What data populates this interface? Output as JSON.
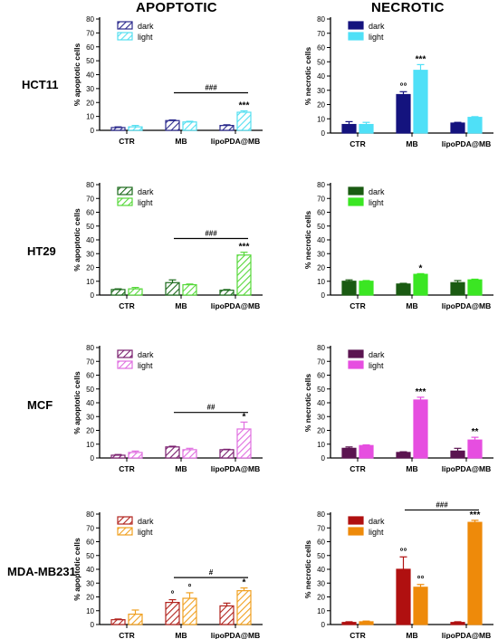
{
  "column_titles": {
    "apoptotic": "APOPTOTIC",
    "necrotic": "NECROTIC"
  },
  "row_labels": [
    "HCT11",
    "HT29",
    "MCF",
    "MDA-MB231"
  ],
  "chart_data": [
    {
      "id": "hct-apo",
      "type": "bar",
      "categories": [
        "CTR",
        "MB",
        "lipoPDA@MB"
      ],
      "ylabel": "% apoptotic cells",
      "ylim": [
        0,
        80
      ],
      "yticks": [
        0,
        10,
        20,
        30,
        40,
        50,
        60,
        70,
        80
      ],
      "hatched": true,
      "legend_placement": "top-left",
      "series": [
        {
          "name": "dark",
          "color": "#2b2a8c",
          "values": [
            2,
            7,
            3.5
          ],
          "errors": [
            0.5,
            0.5,
            0.5
          ]
        },
        {
          "name": "light",
          "color": "#55dff0",
          "values": [
            2.5,
            6,
            13
          ],
          "errors": [
            1,
            0.5,
            1
          ]
        }
      ],
      "annotations": [
        {
          "category": 2,
          "series": 1,
          "text": "***"
        }
      ],
      "brackets": [
        {
          "from": 1,
          "to": 2,
          "text": "###",
          "y": 27
        }
      ]
    },
    {
      "id": "hct-nec",
      "type": "bar",
      "categories": [
        "CTR",
        "MB",
        "lipoPDA@MB"
      ],
      "ylabel": "% necrotic cells",
      "ylim": [
        0,
        80
      ],
      "yticks": [
        0,
        10,
        20,
        30,
        40,
        50,
        60,
        70,
        80
      ],
      "hatched": false,
      "legend_placement": "top-left",
      "series": [
        {
          "name": "dark",
          "color": "#14137e",
          "values": [
            6,
            27,
            7
          ],
          "errors": [
            2,
            2,
            0.5
          ]
        },
        {
          "name": "light",
          "color": "#4fe0f7",
          "values": [
            6,
            44,
            11
          ],
          "errors": [
            1.5,
            4,
            0.5
          ]
        }
      ],
      "annotations": [
        {
          "category": 1,
          "series": 0,
          "text": "°°"
        },
        {
          "category": 1,
          "series": 1,
          "text": "***"
        }
      ],
      "brackets": []
    },
    {
      "id": "ht-apo",
      "type": "bar",
      "categories": [
        "CTR",
        "MB",
        "lipoPDA@MB"
      ],
      "ylabel": "% apoptotic cells",
      "ylim": [
        0,
        80
      ],
      "yticks": [
        0,
        10,
        20,
        30,
        40,
        50,
        60,
        70,
        80
      ],
      "hatched": true,
      "legend_placement": "top-left",
      "series": [
        {
          "name": "dark",
          "color": "#1d6b1d",
          "values": [
            4,
            9,
            3.5
          ],
          "errors": [
            0.5,
            2,
            0.5
          ]
        },
        {
          "name": "light",
          "color": "#56d83a",
          "values": [
            4.5,
            7.5,
            29
          ],
          "errors": [
            1,
            0.5,
            2
          ]
        }
      ],
      "annotations": [
        {
          "category": 2,
          "series": 1,
          "text": "***"
        }
      ],
      "brackets": [
        {
          "from": 1,
          "to": 2,
          "text": "###",
          "y": 41
        }
      ]
    },
    {
      "id": "ht-nec",
      "type": "bar",
      "categories": [
        "CTR",
        "MB",
        "lipoPDA@MB"
      ],
      "ylabel": "% necrotic cells",
      "ylim": [
        0,
        80
      ],
      "yticks": [
        0,
        10,
        20,
        30,
        40,
        50,
        60,
        70,
        80
      ],
      "hatched": false,
      "legend_placement": "top-left",
      "series": [
        {
          "name": "dark",
          "color": "#1a5b12",
          "values": [
            10,
            8,
            9
          ],
          "errors": [
            1,
            0.5,
            1.5
          ]
        },
        {
          "name": "light",
          "color": "#3be623",
          "values": [
            10,
            15,
            11
          ],
          "errors": [
            0.5,
            0.5,
            0.5
          ]
        }
      ],
      "annotations": [
        {
          "category": 1,
          "series": 1,
          "text": "*"
        }
      ],
      "brackets": []
    },
    {
      "id": "mcf-apo",
      "type": "bar",
      "categories": [
        "CTR",
        "MB",
        "lipoPDA@MB"
      ],
      "ylabel": "% apoptotic cells",
      "ylim": [
        0,
        80
      ],
      "yticks": [
        0,
        10,
        20,
        30,
        40,
        50,
        60,
        70,
        80
      ],
      "hatched": true,
      "legend_placement": "top-left",
      "series": [
        {
          "name": "dark",
          "color": "#7a1f6f",
          "values": [
            2,
            8,
            6
          ],
          "errors": [
            0.5,
            0.5,
            0.3
          ]
        },
        {
          "name": "light",
          "color": "#e06ee0",
          "values": [
            4,
            6,
            21
          ],
          "errors": [
            1,
            1,
            5
          ]
        }
      ],
      "annotations": [
        {
          "category": 2,
          "series": 1,
          "text": "*"
        }
      ],
      "brackets": [
        {
          "from": 1,
          "to": 2,
          "text": "##",
          "y": 33
        }
      ]
    },
    {
      "id": "mcf-nec",
      "type": "bar",
      "categories": [
        "CTR",
        "MB",
        "lipoPDA@MB"
      ],
      "ylabel": "% necrotic cells",
      "ylim": [
        0,
        80
      ],
      "yticks": [
        0,
        10,
        20,
        30,
        40,
        50,
        60,
        70,
        80
      ],
      "hatched": false,
      "legend_placement": "top-left",
      "series": [
        {
          "name": "dark",
          "color": "#5b1450",
          "values": [
            7,
            4,
            5
          ],
          "errors": [
            1,
            0.5,
            2
          ]
        },
        {
          "name": "light",
          "color": "#e64ee0",
          "values": [
            9,
            42,
            13
          ],
          "errors": [
            0.5,
            2,
            2
          ]
        }
      ],
      "annotations": [
        {
          "category": 1,
          "series": 1,
          "text": "***"
        },
        {
          "category": 2,
          "series": 1,
          "text": "**"
        }
      ],
      "brackets": []
    },
    {
      "id": "mda-apo",
      "type": "bar",
      "categories": [
        "CTR",
        "MB",
        "lipoPDA@MB"
      ],
      "ylabel": "% apoptotic cells",
      "ylim": [
        0,
        80
      ],
      "yticks": [
        0,
        10,
        20,
        30,
        40,
        50,
        60,
        70,
        80
      ],
      "hatched": true,
      "legend_placement": "top-left",
      "series": [
        {
          "name": "dark",
          "color": "#b2241e",
          "values": [
            3.5,
            16,
            13.5
          ],
          "errors": [
            0.5,
            2,
            2
          ]
        },
        {
          "name": "light",
          "color": "#f0a020",
          "values": [
            7.5,
            19,
            24.5
          ],
          "errors": [
            3,
            4,
            2
          ]
        }
      ],
      "annotations": [
        {
          "category": 1,
          "series": 0,
          "text": "°"
        },
        {
          "category": 1,
          "series": 1,
          "text": "°"
        },
        {
          "category": 2,
          "series": 1,
          "text": "*"
        }
      ],
      "brackets": [
        {
          "from": 1,
          "to": 2,
          "text": "#",
          "y": 34
        }
      ]
    },
    {
      "id": "mda-nec",
      "type": "bar",
      "categories": [
        "CTR",
        "MB",
        "lipoPDA@MB"
      ],
      "ylabel": "% necrotic cells",
      "ylim": [
        0,
        80
      ],
      "yticks": [
        0,
        10,
        20,
        30,
        40,
        50,
        60,
        70,
        80
      ],
      "hatched": false,
      "legend_placement": "top-left",
      "series": [
        {
          "name": "dark",
          "color": "#b01010",
          "values": [
            1.5,
            40,
            1.5
          ],
          "errors": [
            0.5,
            9,
            0.5
          ]
        },
        {
          "name": "light",
          "color": "#ee8a0a",
          "values": [
            2,
            27,
            74
          ],
          "errors": [
            0.5,
            2,
            1.5
          ]
        }
      ],
      "annotations": [
        {
          "category": 1,
          "series": 0,
          "text": "°°"
        },
        {
          "category": 1,
          "series": 1,
          "text": "°°"
        },
        {
          "category": 2,
          "series": 1,
          "text": "***"
        }
      ],
      "brackets": [
        {
          "from": 1,
          "to": 2,
          "text": "###",
          "y": 83
        }
      ]
    }
  ]
}
